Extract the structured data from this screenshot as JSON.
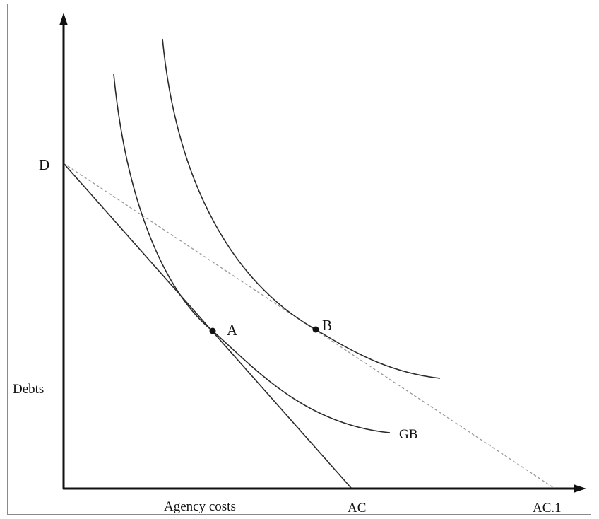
{
  "labels": {
    "origin_intercept": "D",
    "y_axis": "Debts",
    "x_axis": "Agency costs",
    "point_a": "A",
    "point_b": "B",
    "curve_gb": "GB",
    "x_intercept_1": "AC",
    "x_intercept_2": "AC.1"
  },
  "colors": {
    "ink": "#111111",
    "curve": "#2a2a2a",
    "dashed": "#9a9a9a",
    "frame": "#8a8a8a",
    "background": "#ffffff"
  }
}
